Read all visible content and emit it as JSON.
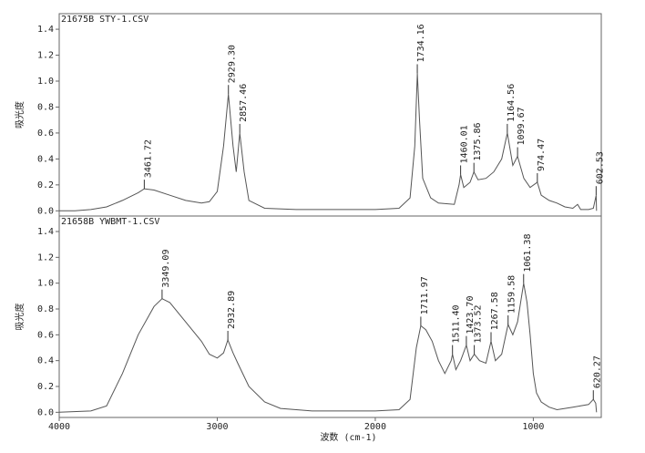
{
  "chart_data": [
    {
      "type": "line",
      "title": "21675B  STY-1.CSV",
      "y_label": "吸光度",
      "xlim": [
        4000,
        570
      ],
      "ylim": [
        -0.04,
        1.52
      ],
      "yticks": [
        {
          "value": 0,
          "label": "0.0"
        },
        0.2,
        0.4,
        0.6,
        0.8,
        {
          "value": 1,
          "label": "1.0"
        },
        1.2,
        1.4
      ],
      "color": "#555555",
      "x": [
        4000,
        3900,
        3800,
        3700,
        3600,
        3500,
        3461.72,
        3400,
        3300,
        3200,
        3100,
        3050,
        3000,
        2960,
        2929.3,
        2900,
        2880,
        2857.46,
        2830,
        2800,
        2700,
        2500,
        2000,
        1850,
        1780,
        1750,
        1734.16,
        1720,
        1700,
        1650,
        1600,
        1500,
        1470,
        1460.01,
        1440,
        1400,
        1375.86,
        1350,
        1300,
        1250,
        1200,
        1164.56,
        1130,
        1099.67,
        1060,
        1020,
        974.47,
        950,
        900,
        850,
        800,
        750,
        720,
        700,
        650,
        620,
        602.53,
        600
      ],
      "values": [
        0,
        0,
        0.01,
        0.03,
        0.08,
        0.14,
        0.17,
        0.16,
        0.12,
        0.08,
        0.06,
        0.07,
        0.15,
        0.5,
        0.9,
        0.5,
        0.3,
        0.6,
        0.3,
        0.08,
        0.02,
        0.01,
        0.01,
        0.02,
        0.1,
        0.5,
        1.06,
        0.7,
        0.25,
        0.1,
        0.06,
        0.05,
        0.2,
        0.28,
        0.18,
        0.22,
        0.3,
        0.24,
        0.25,
        0.3,
        0.4,
        0.6,
        0.35,
        0.42,
        0.25,
        0.18,
        0.22,
        0.12,
        0.08,
        0.06,
        0.03,
        0.02,
        0.05,
        0.01,
        0.01,
        0.02,
        0.12,
        0
      ],
      "peaks": [
        {
          "x": 3461.72,
          "y": 0.17,
          "label": "3461.72"
        },
        {
          "x": 2929.3,
          "y": 0.9,
          "label": "2929.30"
        },
        {
          "x": 2857.46,
          "y": 0.6,
          "label": "2857.46"
        },
        {
          "x": 1734.16,
          "y": 1.06,
          "label": "1734.16"
        },
        {
          "x": 1460.01,
          "y": 0.28,
          "label": "1460.01"
        },
        {
          "x": 1375.86,
          "y": 0.3,
          "label": "1375.86"
        },
        {
          "x": 1164.56,
          "y": 0.6,
          "label": "1164.56"
        },
        {
          "x": 1099.67,
          "y": 0.42,
          "label": "1099.67"
        },
        {
          "x": 974.47,
          "y": 0.22,
          "label": "974.47"
        },
        {
          "x": 602.53,
          "y": 0.12,
          "label": "602.53"
        }
      ]
    },
    {
      "type": "line",
      "title": "21658B  YWBMT-1.CSV",
      "y_label": "吸光度",
      "x_label": "波数 (cm-1)",
      "xlim": [
        4000,
        570
      ],
      "ylim": [
        -0.04,
        1.52
      ],
      "xticks": [
        4000,
        3000,
        2000,
        1000
      ],
      "yticks": [
        {
          "value": 0,
          "label": "0.0"
        },
        0.2,
        0.4,
        0.6,
        0.8,
        {
          "value": 1,
          "label": "1.0"
        },
        1.2,
        1.4
      ],
      "color": "#555555",
      "x": [
        4000,
        3800,
        3700,
        3600,
        3500,
        3400,
        3349.09,
        3300,
        3200,
        3100,
        3050,
        3000,
        2960,
        2932.89,
        2900,
        2870,
        2800,
        2700,
        2600,
        2400,
        2000,
        1850,
        1780,
        1740,
        1711.97,
        1680,
        1640,
        1600,
        1560,
        1520,
        1511.4,
        1490,
        1460,
        1423.7,
        1400,
        1373.52,
        1340,
        1300,
        1267.58,
        1240,
        1200,
        1159.58,
        1130,
        1100,
        1061.38,
        1040,
        1020,
        1000,
        980,
        950,
        900,
        850,
        800,
        750,
        700,
        650,
        620.27,
        605,
        600
      ],
      "values": [
        0,
        0.01,
        0.05,
        0.3,
        0.6,
        0.82,
        0.88,
        0.85,
        0.7,
        0.55,
        0.45,
        0.42,
        0.46,
        0.56,
        0.46,
        0.38,
        0.2,
        0.08,
        0.03,
        0.01,
        0.01,
        0.02,
        0.1,
        0.5,
        0.67,
        0.64,
        0.55,
        0.4,
        0.3,
        0.4,
        0.45,
        0.33,
        0.4,
        0.52,
        0.4,
        0.45,
        0.4,
        0.38,
        0.55,
        0.4,
        0.45,
        0.68,
        0.6,
        0.7,
        1,
        0.85,
        0.6,
        0.3,
        0.15,
        0.08,
        0.04,
        0.02,
        0.03,
        0.04,
        0.05,
        0.06,
        0.1,
        0.07,
        0
      ],
      "peaks": [
        {
          "x": 3349.09,
          "y": 0.88,
          "label": "3349.09"
        },
        {
          "x": 2932.89,
          "y": 0.56,
          "label": "2932.89"
        },
        {
          "x": 1711.97,
          "y": 0.67,
          "label": "1711.97"
        },
        {
          "x": 1511.4,
          "y": 0.45,
          "label": "1511.40"
        },
        {
          "x": 1423.7,
          "y": 0.52,
          "label": "1423.70"
        },
        {
          "x": 1373.52,
          "y": 0.45,
          "label": "1373.52"
        },
        {
          "x": 1267.58,
          "y": 0.55,
          "label": "1267.58"
        },
        {
          "x": 1159.58,
          "y": 0.68,
          "label": "1159.58"
        },
        {
          "x": 1061.38,
          "y": 1,
          "label": "1061.38"
        },
        {
          "x": 620.27,
          "y": 0.1,
          "label": "620.27"
        }
      ]
    }
  ]
}
